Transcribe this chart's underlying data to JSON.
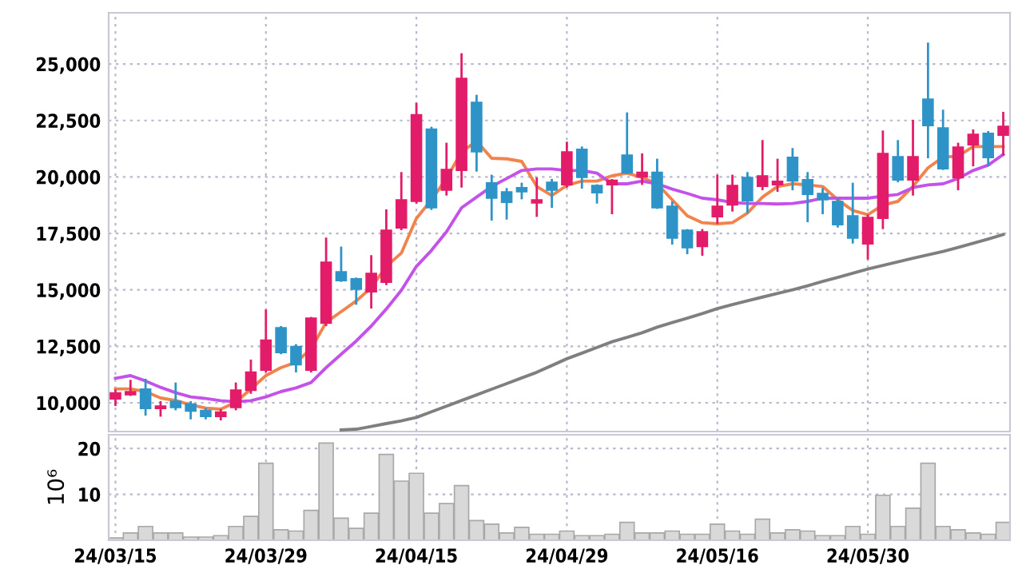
{
  "chart_data": [
    {
      "type": "candlestick",
      "categories": [
        null,
        null,
        null,
        null,
        null,
        null,
        null,
        null,
        null,
        null,
        null,
        null,
        null,
        null,
        null,
        null,
        null,
        null,
        null,
        null,
        null,
        null,
        null,
        null,
        null,
        null,
        null,
        null,
        null,
        null,
        null,
        null,
        null,
        null,
        null,
        null,
        null,
        null,
        null,
        null,
        null,
        null,
        null,
        null,
        null,
        null,
        null,
        null,
        null,
        null,
        null,
        null,
        null,
        null,
        null,
        null,
        null,
        null,
        null,
        null
      ],
      "ohlc": [
        [
          10165,
          10543,
          9906,
          10448
        ],
        [
          10354,
          10967,
          10354,
          10495
        ],
        [
          10613,
          11014,
          9481,
          9741
        ],
        [
          9741,
          10024,
          9434,
          9858
        ],
        [
          10071,
          10849,
          9717,
          9788
        ],
        [
          9953,
          10024,
          9316,
          9623
        ],
        [
          9670,
          9717,
          9316,
          9387
        ],
        [
          9387,
          9670,
          9269,
          9599
        ],
        [
          9788,
          10849,
          9717,
          10566
        ],
        [
          10542,
          11864,
          10448,
          11368
        ],
        [
          11439,
          14081,
          11392,
          12784
        ],
        [
          13327,
          13350,
          12200,
          12218
        ],
        [
          12500,
          12548,
          11392,
          11675
        ],
        [
          11439,
          13751,
          11392,
          13751
        ],
        [
          13515,
          17266,
          13444,
          16228
        ],
        [
          15803,
          16865,
          15402,
          15402
        ],
        [
          15496,
          15496,
          14388,
          15025
        ],
        [
          14907,
          16487,
          14223,
          15732
        ],
        [
          15331,
          18516,
          15260,
          17643
        ],
        [
          17737,
          20167,
          17690,
          18988
        ],
        [
          18917,
          23234,
          18870,
          22762
        ],
        [
          22125,
          22172,
          18587,
          18634
        ],
        [
          19412,
          21465,
          19224,
          20332
        ],
        [
          20285,
          25428,
          19578,
          24366
        ],
        [
          23305,
          23588,
          20285,
          21111
        ],
        [
          19743,
          20049,
          18115,
          19058
        ],
        [
          19342,
          19459,
          18162,
          18870
        ],
        [
          19530,
          19695,
          19058,
          19342
        ],
        [
          18846,
          19931,
          18280,
          18988
        ],
        [
          19766,
          19861,
          18681,
          19412
        ],
        [
          19648,
          21512,
          19578,
          21111
        ],
        [
          21229,
          21300,
          19530,
          19978
        ],
        [
          19625,
          19625,
          18870,
          19294
        ],
        [
          19648,
          19861,
          18398,
          19861
        ],
        [
          20969,
          22809,
          20167,
          20167
        ],
        [
          19997,
          20993,
          19695,
          20214
        ],
        [
          20214,
          20757,
          18634,
          18634
        ],
        [
          18705,
          18870,
          17053,
          17289
        ],
        [
          17643,
          17643,
          16629,
          16865
        ],
        [
          16912,
          17643,
          16558,
          17572
        ],
        [
          18233,
          20049,
          17973,
          18705
        ],
        [
          18752,
          20049,
          18516,
          19625
        ],
        [
          19978,
          20167,
          18445,
          18940
        ],
        [
          19578,
          21583,
          19459,
          20049
        ],
        [
          19648,
          20757,
          19389,
          19813
        ],
        [
          20875,
          21229,
          19459,
          19813
        ],
        [
          19884,
          20167,
          18044,
          19224
        ],
        [
          19271,
          19459,
          18398,
          18988
        ],
        [
          18917,
          18988,
          17808,
          17879
        ],
        [
          18280,
          19695,
          17100,
          17289
        ],
        [
          17030,
          18280,
          16393,
          18209
        ],
        [
          18162,
          22007,
          17737,
          21040
        ],
        [
          20898,
          21583,
          19813,
          19861
        ],
        [
          19861,
          22479,
          19224,
          20898
        ],
        [
          23447,
          25900,
          20875,
          22267
        ],
        [
          22172,
          22927,
          20356,
          20356
        ],
        [
          19955,
          21465,
          19459,
          21323
        ],
        [
          21418,
          22054,
          20521,
          21890
        ],
        [
          21937,
          21984,
          20521,
          20851
        ],
        [
          21842,
          22833,
          20993,
          22243
        ]
      ],
      "colors": [
        "#e31c6a",
        "#e31c6a",
        "#2e94c8",
        "#e31c6a",
        "#2e94c8",
        "#2e94c8",
        "#2e94c8",
        "#e31c6a",
        "#e31c6a",
        "#e31c6a",
        "#e31c6a",
        "#2e94c8",
        "#2e94c8",
        "#e31c6a",
        "#e31c6a",
        "#2e94c8",
        "#2e94c8",
        "#e31c6a",
        "#e31c6a",
        "#e31c6a",
        "#e31c6a",
        "#2e94c8",
        "#e31c6a",
        "#e31c6a",
        "#2e94c8",
        "#2e94c8",
        "#2e94c8",
        "#2e94c8",
        "#e31c6a",
        "#2e94c8",
        "#e31c6a",
        "#2e94c8",
        "#2e94c8",
        "#e31c6a",
        "#2e94c8",
        "#e31c6a",
        "#2e94c8",
        "#2e94c8",
        "#2e94c8",
        "#e31c6a",
        "#e31c6a",
        "#e31c6a",
        "#2e94c8",
        "#e31c6a",
        "#e31c6a",
        "#2e94c8",
        "#2e94c8",
        "#2e94c8",
        "#2e94c8",
        "#2e94c8",
        "#e31c6a",
        "#e31c6a",
        "#2e94c8",
        "#e31c6a",
        "#2e94c8",
        "#2e94c8",
        "#e31c6a",
        "#e31c6a",
        "#2e94c8",
        "#e31c6a"
      ],
      "series": [
        {
          "type": "line",
          "color": "#f0844c",
          "values": [
            10613,
            10613,
            10495,
            10212,
            10100,
            9906,
            9764,
            9717,
            10024,
            10613,
            11203,
            11557,
            11793,
            12383,
            13562,
            14034,
            14506,
            15096,
            16039,
            16629,
            18162,
            18988,
            19931,
            21111,
            21583,
            20828,
            20800,
            20686,
            19578,
            19176,
            19625,
            19813,
            19813,
            20049,
            20167,
            19978,
            19695,
            18988,
            18280,
            17973,
            17926,
            17973,
            18398,
            19106,
            19578,
            19695,
            19650,
            19578,
            18988,
            18516,
            18327,
            18752,
            18917,
            19578,
            20403,
            20875,
            20922,
            21347,
            21347,
            21347
          ]
        },
        {
          "type": "line",
          "color": "#c452e8",
          "values": [
            11085,
            11203,
            10967,
            10684,
            10448,
            10259,
            10189,
            10094,
            10047,
            10094,
            10259,
            10495,
            10660,
            10896,
            11557,
            12147,
            12736,
            13397,
            14152,
            14978,
            16039,
            16747,
            17572,
            18634,
            19106,
            19578,
            19931,
            20285,
            20356,
            20356,
            20285,
            20285,
            20167,
            19695,
            19695,
            19813,
            19695,
            19459,
            19271,
            19058,
            18988,
            18870,
            18823,
            18823,
            18800,
            18823,
            18917,
            19058,
            19058,
            19058,
            19058,
            19153,
            19224,
            19530,
            19648,
            19695,
            19931,
            20285,
            20521,
            20993
          ]
        },
        {
          "type": "line",
          "color": "#7f7f7f",
          "values": [
            null,
            null,
            null,
            null,
            null,
            null,
            null,
            null,
            null,
            null,
            null,
            null,
            null,
            null,
            null,
            8800,
            8830,
            8950,
            9080,
            9200,
            9350,
            9600,
            9850,
            10100,
            10350,
            10600,
            10850,
            11100,
            11350,
            11650,
            11950,
            12200,
            12450,
            12700,
            12900,
            13100,
            13350,
            13550,
            13750,
            13950,
            14170,
            14350,
            14520,
            14680,
            14840,
            15000,
            15180,
            15370,
            15550,
            15740,
            15920,
            16080,
            16240,
            16400,
            16550,
            16700,
            16880,
            17060,
            17250,
            17450
          ]
        }
      ],
      "ylim": [
        8726,
        27268
      ],
      "yticks": [
        {
          "value": 10000,
          "label": "10,000"
        },
        {
          "value": 12500,
          "label": "12,500"
        },
        {
          "value": 15000,
          "label": "15,000"
        },
        {
          "value": 17500,
          "label": "17,500"
        },
        {
          "value": 20000,
          "label": "20,000"
        },
        {
          "value": 22500,
          "label": "22,500"
        },
        {
          "value": 25000,
          "label": "25,000"
        }
      ],
      "grid": true,
      "tick_labels": "y"
    },
    {
      "type": "bar",
      "categories": [
        "24/03/15",
        null,
        null,
        null,
        null,
        null,
        null,
        null,
        null,
        null,
        "24/03/29",
        null,
        null,
        null,
        null,
        null,
        null,
        null,
        null,
        null,
        "24/04/15",
        null,
        null,
        null,
        null,
        null,
        null,
        null,
        null,
        null,
        "24/04/29",
        null,
        null,
        null,
        null,
        null,
        null,
        null,
        null,
        null,
        "24/05/16",
        null,
        null,
        null,
        null,
        null,
        null,
        null,
        null,
        null,
        "24/05/30",
        null,
        null,
        null,
        null,
        null,
        null,
        null,
        null,
        null
      ],
      "values": [
        0.5,
        1.6,
        3.0,
        1.6,
        1.6,
        0.7,
        0.7,
        1.0,
        3.0,
        5.2,
        16.8,
        2.3,
        2.0,
        6.5,
        21.2,
        4.8,
        2.6,
        5.9,
        18.7,
        12.9,
        14.6,
        5.9,
        8.0,
        11.9,
        4.3,
        3.5,
        1.6,
        2.8,
        1.3,
        1.3,
        2.0,
        1.0,
        1.0,
        1.3,
        3.9,
        1.6,
        1.6,
        2.0,
        1.3,
        1.3,
        3.5,
        2.0,
        1.3,
        4.6,
        1.6,
        2.3,
        2.0,
        1.0,
        1.0,
        3.0,
        1.3,
        9.8,
        3.0,
        7.0,
        16.8,
        3.0,
        2.3,
        1.6,
        1.3,
        3.9
      ],
      "color": "#d9d9d9",
      "ylabel": "10⁶",
      "ylim": [
        0,
        23
      ],
      "yticks": [
        10,
        20
      ],
      "grid": true
    }
  ]
}
